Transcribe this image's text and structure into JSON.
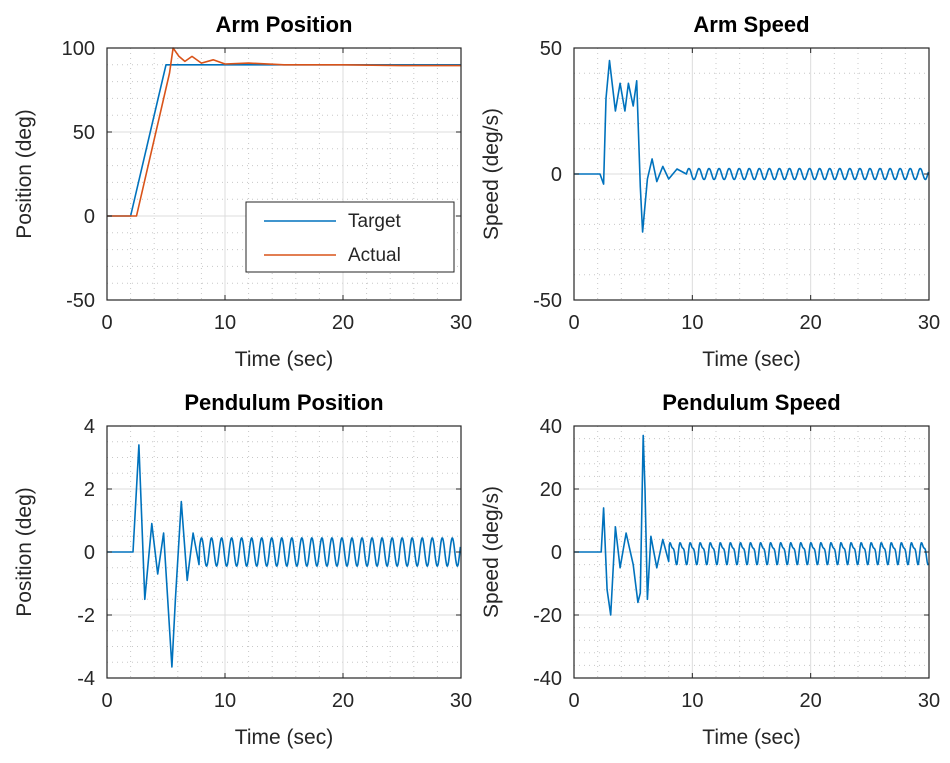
{
  "colors": {
    "series1": "#0072BD",
    "series2": "#D95319",
    "axes": "#262626",
    "grid": "#dcdcdc",
    "minor_grid": "#c8c8c8"
  },
  "chart_data": [
    {
      "type": "line",
      "title": "Arm Position",
      "xlabel": "Time (sec)",
      "ylabel": "Position (deg)",
      "xlim": [
        0,
        30
      ],
      "ylim": [
        -50,
        100
      ],
      "xticks": [
        0,
        10,
        20,
        30
      ],
      "yticks": [
        -50,
        0,
        50,
        100
      ],
      "grid": true,
      "minor_grid": true,
      "legend": "inside-lower-right",
      "series": [
        {
          "name": "Target",
          "color": "#0072BD",
          "x": [
            0,
            2,
            5,
            10,
            20,
            30
          ],
          "y": [
            0,
            0,
            90,
            90,
            90,
            90
          ]
        },
        {
          "name": "Actual",
          "color": "#D95319",
          "x": [
            0,
            2.5,
            5.3,
            5.6,
            6.1,
            6.6,
            7.2,
            8,
            9,
            10,
            12,
            15,
            20,
            25,
            30
          ],
          "y": [
            0,
            0,
            85,
            100,
            95,
            92,
            95,
            91,
            93,
            90.5,
            91,
            90,
            90,
            89.5,
            89.5
          ]
        }
      ]
    },
    {
      "type": "line",
      "title": "Arm Speed",
      "xlabel": "Time (sec)",
      "ylabel": "Speed (deg/s)",
      "xlim": [
        0,
        30
      ],
      "ylim": [
        -50,
        50
      ],
      "xticks": [
        0,
        10,
        20,
        30
      ],
      "yticks": [
        -50,
        0,
        50
      ],
      "grid": true,
      "minor_grid": true,
      "series": [
        {
          "color": "#0072BD",
          "x": [
            0,
            2.2,
            2.5,
            2.7,
            3,
            3.5,
            3.9,
            4.3,
            4.6,
            5,
            5.3,
            5.6,
            5.8,
            6.2,
            6.6,
            7,
            7.5,
            8,
            8.7,
            9.5,
            30
          ],
          "y": [
            0,
            0,
            -4,
            30,
            45,
            25,
            36,
            25,
            36,
            27,
            37,
            -5,
            -23,
            -2,
            6,
            -3,
            3,
            -2,
            2,
            0,
            0
          ]
        }
      ]
    },
    {
      "type": "line",
      "title": "Pendulum Position",
      "xlabel": "Time (sec)",
      "ylabel": "Position (deg)",
      "xlim": [
        0,
        30
      ],
      "ylim": [
        -4,
        4
      ],
      "xticks": [
        0,
        10,
        20,
        30
      ],
      "yticks": [
        -4,
        -2,
        0,
        2,
        4
      ],
      "grid": true,
      "minor_grid": true,
      "series": [
        {
          "color": "#0072BD",
          "x": [
            0,
            2.2,
            2.7,
            3.2,
            3.8,
            4.3,
            4.8,
            5.5,
            5.8,
            6.3,
            6.8,
            7.3,
            7.8,
            30
          ],
          "y": [
            0,
            0,
            3.4,
            -1.5,
            0.9,
            -0.7,
            0.6,
            -3.65,
            -1.5,
            1.6,
            -0.9,
            0.6,
            -0.4,
            0
          ]
        }
      ]
    },
    {
      "type": "line",
      "title": "Pendulum Speed",
      "xlabel": "Time (sec)",
      "ylabel": "Speed (deg/s)",
      "xlim": [
        0,
        30
      ],
      "ylim": [
        -40,
        40
      ],
      "xticks": [
        0,
        10,
        20,
        30
      ],
      "yticks": [
        -40,
        -20,
        0,
        20,
        40
      ],
      "grid": true,
      "minor_grid": true,
      "series": [
        {
          "color": "#0072BD",
          "x": [
            0,
            2.3,
            2.5,
            2.8,
            3.1,
            3.5,
            3.9,
            4.4,
            5,
            5.4,
            5.6,
            5.85,
            6.0,
            6.2,
            6.5,
            7.0,
            7.5,
            8,
            30
          ],
          "y": [
            0,
            0,
            14,
            -12,
            -20,
            8,
            -5,
            6,
            -4,
            -16,
            -13,
            37,
            20,
            -15,
            5,
            -5,
            4,
            -3,
            0
          ]
        }
      ]
    }
  ]
}
